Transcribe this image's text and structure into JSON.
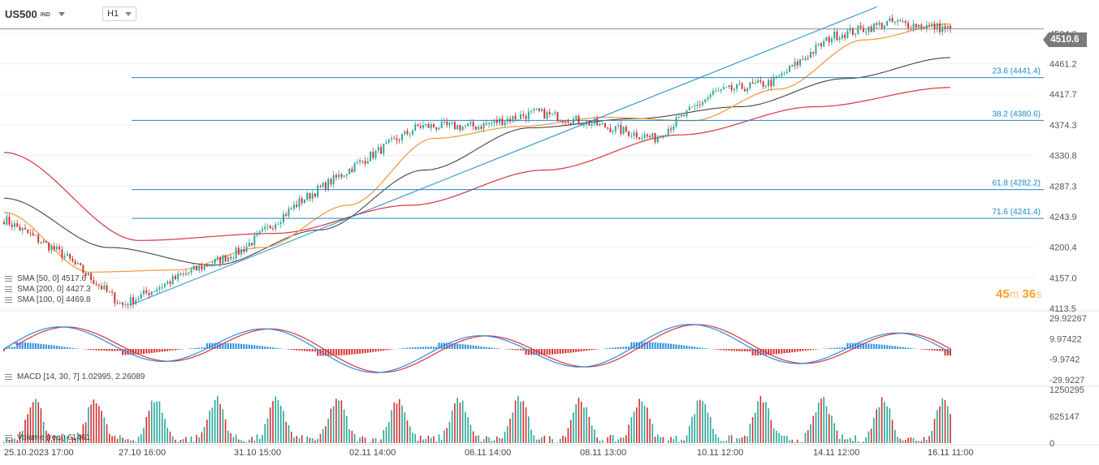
{
  "header": {
    "symbol": "US500",
    "symbol_sub": "IND",
    "timeframe": "H1"
  },
  "last_price": "4510.6",
  "timer": {
    "minutes": "45",
    "min_unit": "m",
    "seconds": "36",
    "sec_unit": "s"
  },
  "legend": {
    "sma50": "SMA [50, 0] 4517.6",
    "sma200": "SMA [200, 0] 4427.3",
    "sma100": "SMA [100, 0] 4469.8",
    "macd": "MACD [14, 30, 7] 1.02995, 2.26089",
    "volume": "Volume (real) 61461"
  },
  "colors": {
    "up": "#26a69a",
    "down": "#d32f2f",
    "sma50": "#f0963c",
    "sma100": "#333333",
    "sma200": "#d9333f",
    "fib": "#1e88c8",
    "macd_line": "#2b8ee0",
    "signal_line": "#d9333f"
  },
  "chart_data": {
    "type": "candlestick",
    "price_axis": {
      "ticks": [
        "4504.0",
        "4461.2",
        "4417.7",
        "4374.3",
        "4330.8",
        "4287.3",
        "4243.9",
        "4200.4",
        "4157.0",
        "4113.5"
      ],
      "range": [
        4113.5,
        4547.0
      ]
    },
    "time_axis": [
      "25.10.2023 17:00",
      "27.10 16:00",
      "31.10 15:00",
      "02.11 14:00",
      "06.11 14:00",
      "08.11 13:00",
      "10.11 12:00",
      "14.11 12:00",
      "16.11 11:00"
    ],
    "fibonacci": [
      {
        "label": "23.6 (4441.4)",
        "value": 4441.4
      },
      {
        "label": "38.2 (4380.6)",
        "value": 4380.6
      },
      {
        "label": "61.8 (4282.2)",
        "value": 4282.2
      },
      {
        "label": "71.6 (4241.4)",
        "value": 4241.4
      }
    ],
    "trendline": {
      "from": [
        "27.10 16:00",
        4118
      ],
      "to": [
        "14.11 ~17:00",
        4542
      ]
    },
    "anchors": [
      [
        "25.10.2023 17:00",
        4240
      ],
      [
        "26.10",
        4190
      ],
      [
        "27.10 16:00",
        4118
      ],
      [
        "30.10",
        4160
      ],
      [
        "31.10 15:00",
        4195
      ],
      [
        "01.11",
        4265
      ],
      [
        "02.11 14:00",
        4320
      ],
      [
        "03.11",
        4372
      ],
      [
        "06.11 14:00",
        4372
      ],
      [
        "07.11",
        4392
      ],
      [
        "08.11 13:00",
        4375
      ],
      [
        "09.11",
        4355
      ],
      [
        "10.11 12:00",
        4420
      ],
      [
        "13.11",
        4435
      ],
      [
        "14.11 12:00",
        4500
      ],
      [
        "15.11",
        4520
      ],
      [
        "16.11 11:00",
        4510.6
      ]
    ],
    "sma50_anchors": [
      4250,
      4165,
      4168,
      4200,
      4260,
      4355,
      4372,
      4385,
      4380,
      4425,
      4495,
      4517.6
    ],
    "sma100_anchors": [
      4270,
      4200,
      4175,
      4225,
      4310,
      4370,
      4383,
      4400,
      4440,
      4469.8
    ],
    "sma200_anchors": [
      4335,
      4210,
      4220,
      4260,
      4310,
      4360,
      4400,
      4427.3
    ],
    "macd_axis": {
      "ticks": [
        "29.92267",
        "9.97422",
        "-9.9742",
        "-29.9227"
      ],
      "range": [
        -33,
        33
      ]
    },
    "volume_axis": {
      "ticks": [
        "1250295",
        "625147",
        "0"
      ],
      "range": [
        0,
        1250295
      ]
    }
  }
}
